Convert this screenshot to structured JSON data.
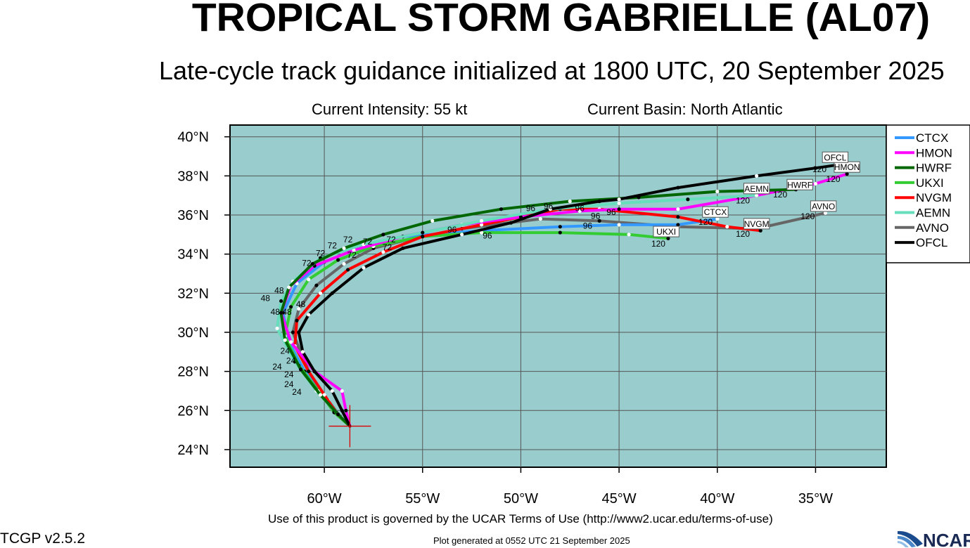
{
  "header": {
    "title": "TROPICAL STORM GABRIELLE (AL07)",
    "subtitle": "Late-cycle track guidance initialized at 1800 UTC, 20 September 2025",
    "intensity": "Current Intensity: 55 kt",
    "basin": "Current Basin: North Atlantic"
  },
  "footer": {
    "terms": "Use of this product is governed by the UCAR Terms of Use (http://www2.ucar.edu/terms-of-use)",
    "version": "TCGP v2.5.2",
    "generated": "Plot generated at 0552 UTC   21 September 2025",
    "logo_text": "NCAR"
  },
  "map": {
    "ocean_color": "#99cccc",
    "grid_color": "#555555",
    "lon_range": [
      -64.8,
      -31.4
    ],
    "lat_range": [
      23.1,
      40.6
    ],
    "lon_ticks": [
      {
        "value": -60,
        "label": "60°W"
      },
      {
        "value": -55,
        "label": "55°W"
      },
      {
        "value": -50,
        "label": "50°W"
      },
      {
        "value": -45,
        "label": "45°W"
      },
      {
        "value": -40,
        "label": "40°W"
      },
      {
        "value": -35,
        "label": "35°W"
      }
    ],
    "lat_ticks": [
      {
        "value": 24,
        "label": "24°N"
      },
      {
        "value": 26,
        "label": "26°N"
      },
      {
        "value": 28,
        "label": "28°N"
      },
      {
        "value": 30,
        "label": "30°N"
      },
      {
        "value": 32,
        "label": "32°N"
      },
      {
        "value": 34,
        "label": "34°N"
      },
      {
        "value": 36,
        "label": "36°N"
      },
      {
        "value": 38,
        "label": "38°N"
      },
      {
        "value": 40,
        "label": "40°N"
      }
    ],
    "current_position": {
      "lon": -58.7,
      "lat": 25.2,
      "marker_color": "#dd0000"
    }
  },
  "legend": [
    {
      "name": "CTCX",
      "color": "#3399ff"
    },
    {
      "name": "HMON",
      "color": "#ff00ff"
    },
    {
      "name": "HWRF",
      "color": "#006600"
    },
    {
      "name": "UKXI",
      "color": "#33cc33"
    },
    {
      "name": "NVGM",
      "color": "#ff0000"
    },
    {
      "name": "AEMN",
      "color": "#66ddbb"
    },
    {
      "name": "AVNO",
      "color": "#666666"
    },
    {
      "name": "OFCL",
      "color": "#000000"
    }
  ],
  "tracks": [
    {
      "name": "AVNO",
      "color": "#666666",
      "points": [
        [
          -58.7,
          25.2
        ],
        [
          -59.2,
          25.7
        ],
        [
          -59.8,
          26.5
        ],
        [
          -60.6,
          27.6
        ],
        [
          -61.1,
          28.7
        ],
        [
          -61.6,
          30.0
        ],
        [
          -61.3,
          31.2
        ],
        [
          -60.4,
          32.4
        ],
        [
          -59.0,
          33.5
        ],
        [
          -57.5,
          34.3
        ],
        [
          -55.5,
          34.8
        ],
        [
          -53.0,
          35.3
        ],
        [
          -49.0,
          35.8
        ],
        [
          -46.0,
          35.7
        ],
        [
          -42.0,
          35.4
        ],
        [
          -38.0,
          35.3
        ],
        [
          -34.5,
          36.1
        ]
      ],
      "labels": [
        {
          "text": "120",
          "lon": -35.4,
          "lat": 35.9,
          "boxed": false
        },
        {
          "text": "AVNO",
          "lon": -34.6,
          "lat": 36.4,
          "boxed": true
        }
      ]
    },
    {
      "name": "CTCX",
      "color": "#3399ff",
      "points": [
        [
          -58.7,
          25.2
        ],
        [
          -59.3,
          25.8
        ],
        [
          -60.1,
          26.8
        ],
        [
          -61.0,
          28.0
        ],
        [
          -61.8,
          29.5
        ],
        [
          -62.1,
          31.0
        ],
        [
          -61.4,
          32.5
        ],
        [
          -60.0,
          33.6
        ],
        [
          -58.0,
          34.4
        ],
        [
          -56.0,
          34.9
        ],
        [
          -52.0,
          35.2
        ],
        [
          -48.0,
          35.4
        ],
        [
          -45.0,
          35.5
        ],
        [
          -42.0,
          35.5
        ],
        [
          -40.0,
          35.8
        ]
      ],
      "labels": [
        {
          "text": "120",
          "lon": -40.6,
          "lat": 35.6,
          "boxed": false
        },
        {
          "text": "CTCX",
          "lon": -40.1,
          "lat": 36.1,
          "boxed": true
        }
      ]
    },
    {
      "name": "UKXI",
      "color": "#33cc33",
      "points": [
        [
          -58.7,
          25.2
        ],
        [
          -59.5,
          25.9
        ],
        [
          -60.3,
          27.0
        ],
        [
          -61.3,
          28.3
        ],
        [
          -62.0,
          29.8
        ],
        [
          -61.7,
          31.3
        ],
        [
          -60.8,
          32.7
        ],
        [
          -59.3,
          33.7
        ],
        [
          -57.5,
          34.4
        ],
        [
          -55.0,
          34.9
        ],
        [
          -52.0,
          35.1
        ],
        [
          -48.0,
          35.1
        ],
        [
          -44.5,
          35.0
        ],
        [
          -42.5,
          34.8
        ]
      ],
      "labels": [
        {
          "text": "120",
          "lon": -43.0,
          "lat": 34.5,
          "boxed": false
        },
        {
          "text": "UKXI",
          "lon": -42.6,
          "lat": 35.1,
          "boxed": true
        }
      ]
    },
    {
      "name": "NVGM",
      "color": "#ff0000",
      "points": [
        [
          -58.7,
          25.2
        ],
        [
          -59.4,
          25.9
        ],
        [
          -60.0,
          26.8
        ],
        [
          -60.8,
          28.0
        ],
        [
          -61.5,
          29.3
        ],
        [
          -61.4,
          30.6
        ],
        [
          -60.2,
          32.0
        ],
        [
          -58.8,
          33.2
        ],
        [
          -57.0,
          34.1
        ],
        [
          -55.0,
          34.9
        ],
        [
          -52.0,
          35.5
        ],
        [
          -48.0,
          36.3
        ],
        [
          -46.0,
          36.3
        ],
        [
          -42.0,
          35.9
        ],
        [
          -39.5,
          35.4
        ],
        [
          -37.8,
          35.2
        ]
      ],
      "labels": [
        {
          "text": "120",
          "lon": -38.7,
          "lat": 35.0,
          "boxed": false
        },
        {
          "text": "NVGM",
          "lon": -38.0,
          "lat": 35.5,
          "boxed": true
        }
      ]
    },
    {
      "name": "HMON",
      "color": "#ff00ff",
      "points": [
        [
          -58.7,
          25.2
        ],
        [
          -58.9,
          26.0
        ],
        [
          -59.1,
          27.0
        ],
        [
          -60.5,
          28.0
        ],
        [
          -61.7,
          29.5
        ],
        [
          -62.2,
          31.0
        ],
        [
          -61.7,
          32.4
        ],
        [
          -60.5,
          33.4
        ],
        [
          -58.5,
          34.2
        ],
        [
          -56.0,
          34.9
        ],
        [
          -53.0,
          35.5
        ],
        [
          -50.0,
          35.9
        ],
        [
          -47.0,
          36.2
        ],
        [
          -45.0,
          36.3
        ],
        [
          -42.0,
          36.3
        ],
        [
          -38.0,
          37.0
        ],
        [
          -35.0,
          37.6
        ],
        [
          -33.4,
          38.1
        ]
      ],
      "labels": [
        {
          "text": "120",
          "lon": -34.1,
          "lat": 37.8,
          "boxed": false
        },
        {
          "text": "HMON",
          "lon": -33.4,
          "lat": 38.4,
          "boxed": true
        }
      ]
    },
    {
      "name": "AEMN",
      "color": "#66ddbb",
      "points": [
        [
          -58.7,
          25.2
        ],
        [
          -59.5,
          26.0
        ],
        [
          -60.4,
          27.0
        ],
        [
          -61.5,
          28.5
        ],
        [
          -62.4,
          30.2
        ],
        [
          -62.2,
          31.6
        ],
        [
          -61.6,
          32.6
        ],
        [
          -60.2,
          33.8
        ],
        [
          -58.0,
          34.5
        ],
        [
          -55.0,
          35.1
        ],
        [
          -52.0,
          35.7
        ],
        [
          -48.5,
          36.3
        ],
        [
          -45.0,
          36.6
        ],
        [
          -41.5,
          36.8
        ],
        [
          -38.0,
          37.0
        ]
      ],
      "labels": [
        {
          "text": "120",
          "lon": -38.7,
          "lat": 36.7,
          "boxed": false
        },
        {
          "text": "AEMN",
          "lon": -38.0,
          "lat": 37.3,
          "boxed": true
        }
      ]
    },
    {
      "name": "HWRF",
      "color": "#006600",
      "points": [
        [
          -58.7,
          25.2
        ],
        [
          -59.3,
          25.8
        ],
        [
          -60.2,
          26.8
        ],
        [
          -61.2,
          28.1
        ],
        [
          -62.0,
          29.6
        ],
        [
          -62.2,
          31.0
        ],
        [
          -61.8,
          32.3
        ],
        [
          -60.6,
          33.5
        ],
        [
          -59.0,
          34.3
        ],
        [
          -57.0,
          35.0
        ],
        [
          -54.5,
          35.7
        ],
        [
          -51.0,
          36.3
        ],
        [
          -47.5,
          36.7
        ],
        [
          -44.0,
          36.9
        ],
        [
          -40.0,
          37.2
        ],
        [
          -36.0,
          37.3
        ]
      ],
      "labels": [
        {
          "text": "120",
          "lon": -36.8,
          "lat": 37.0,
          "boxed": false
        },
        {
          "text": "HWRF",
          "lon": -35.8,
          "lat": 37.5,
          "boxed": true
        }
      ]
    },
    {
      "name": "OFCL",
      "color": "#000000",
      "points": [
        [
          -58.7,
          25.2
        ],
        [
          -59.1,
          26.0
        ],
        [
          -59.6,
          27.0
        ],
        [
          -60.5,
          28.0
        ],
        [
          -61.1,
          29.0
        ],
        [
          -61.3,
          30.0
        ],
        [
          -60.8,
          30.9
        ],
        [
          -59.6,
          32.0
        ],
        [
          -58.0,
          33.3
        ],
        [
          -56.0,
          34.3
        ],
        [
          -53.0,
          35.0
        ],
        [
          -50.5,
          35.6
        ],
        [
          -48.5,
          36.3
        ],
        [
          -46.0,
          36.7
        ],
        [
          -45.0,
          36.8
        ],
        [
          -42.0,
          37.4
        ],
        [
          -38.0,
          38.0
        ],
        [
          -35.0,
          38.4
        ],
        [
          -33.6,
          38.6
        ]
      ],
      "labels": [
        {
          "text": "120",
          "lon": -34.8,
          "lat": 38.3,
          "boxed": false
        },
        {
          "text": "OFCL",
          "lon": -34.0,
          "lat": 38.9,
          "boxed": true
        }
      ]
    }
  ],
  "hour_labels": [
    {
      "text": "24",
      "lon": -62.4,
      "lat": 28.1
    },
    {
      "text": "24",
      "lon": -61.7,
      "lat": 28.4
    },
    {
      "text": "24",
      "lon": -61.8,
      "lat": 27.7
    },
    {
      "text": "24",
      "lon": -61.8,
      "lat": 27.2
    },
    {
      "text": "24",
      "lon": -61.4,
      "lat": 26.8
    },
    {
      "text": "24",
      "lon": -62.0,
      "lat": 28.9
    },
    {
      "text": "48",
      "lon": -63.0,
      "lat": 31.6
    },
    {
      "text": "48",
      "lon": -62.5,
      "lat": 30.9
    },
    {
      "text": "48",
      "lon": -61.2,
      "lat": 31.3
    },
    {
      "text": "48",
      "lon": -62.3,
      "lat": 32.0
    },
    {
      "text": "48",
      "lon": -61.9,
      "lat": 30.9
    },
    {
      "text": "72",
      "lon": -60.9,
      "lat": 33.4
    },
    {
      "text": "72",
      "lon": -59.6,
      "lat": 34.3
    },
    {
      "text": "72",
      "lon": -58.6,
      "lat": 33.8
    },
    {
      "text": "72",
      "lon": -57.8,
      "lat": 34.5
    },
    {
      "text": "72",
      "lon": -56.6,
      "lat": 34.6
    },
    {
      "text": "72",
      "lon": -56.8,
      "lat": 34.2
    },
    {
      "text": "72",
      "lon": -60.2,
      "lat": 33.9
    },
    {
      "text": "72",
      "lon": -58.8,
      "lat": 34.6
    },
    {
      "text": "96",
      "lon": -53.5,
      "lat": 35.1
    },
    {
      "text": "96",
      "lon": -51.7,
      "lat": 34.8
    },
    {
      "text": "96",
      "lon": -49.5,
      "lat": 36.2
    },
    {
      "text": "96",
      "lon": -48.6,
      "lat": 36.3
    },
    {
      "text": "96",
      "lon": -47.0,
      "lat": 36.2
    },
    {
      "text": "96",
      "lon": -45.4,
      "lat": 36.0
    },
    {
      "text": "96",
      "lon": -46.6,
      "lat": 35.3
    },
    {
      "text": "96",
      "lon": -46.2,
      "lat": 35.8
    }
  ]
}
